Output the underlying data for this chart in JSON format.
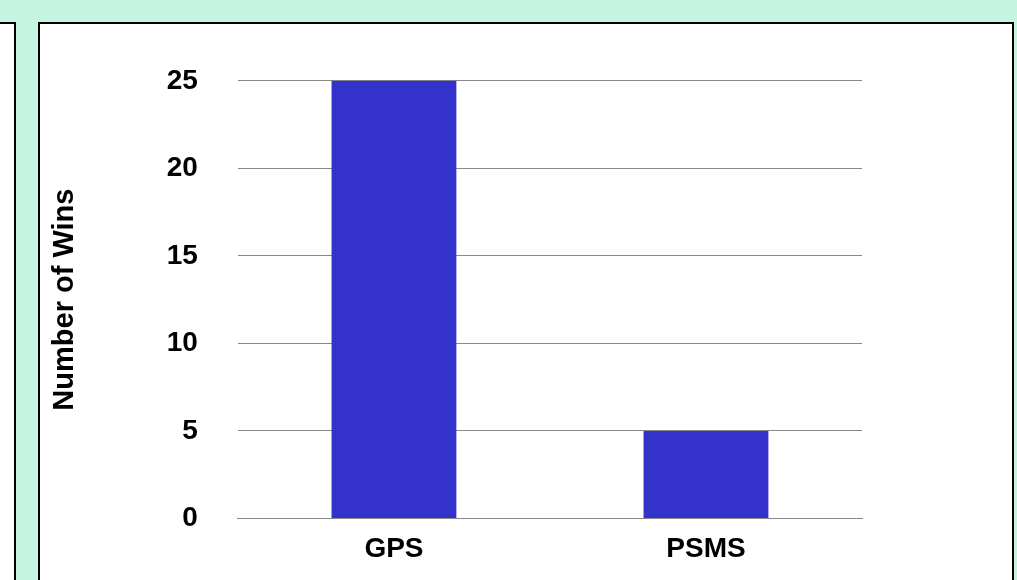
{
  "chart_data": {
    "type": "bar",
    "ylabel": "Number of Wins",
    "categories": [
      "GPS",
      "PSMS"
    ],
    "values": [
      25,
      5
    ],
    "color": "#3333cc",
    "ylim": [
      0,
      25
    ],
    "yticks": [
      0,
      5,
      10,
      15,
      20,
      25
    ],
    "grid": "y"
  }
}
